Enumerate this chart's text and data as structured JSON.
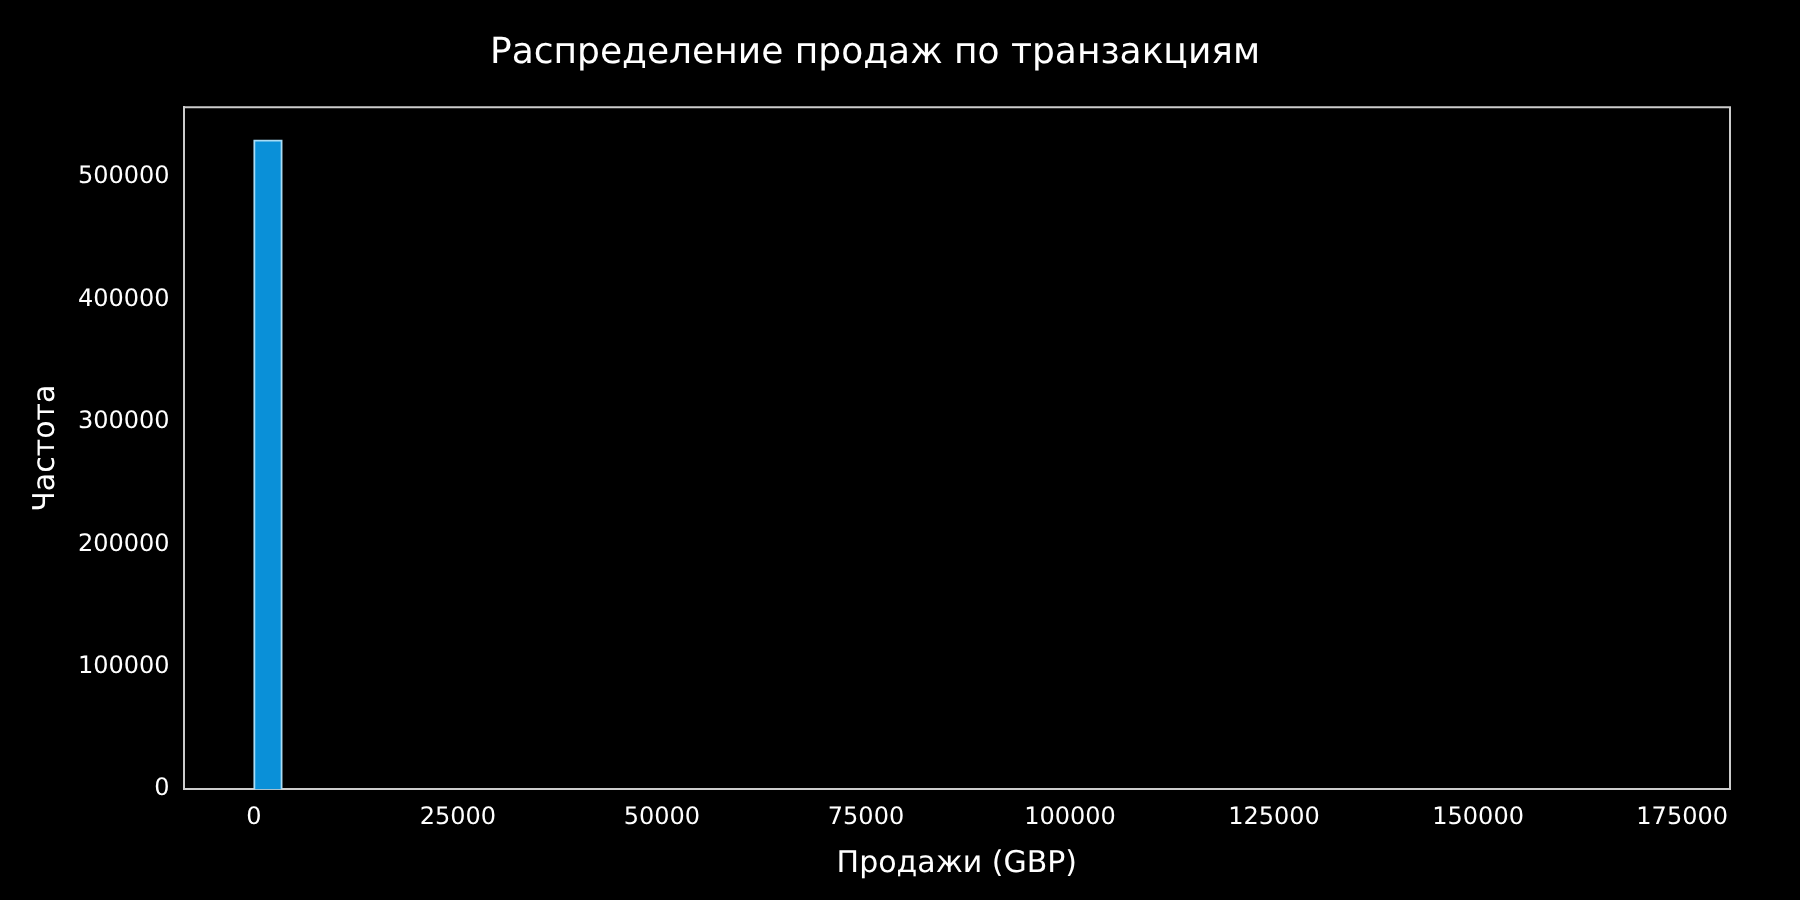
{
  "chart_data": {
    "type": "histogram",
    "title": "Распределение продаж по транзакциям",
    "xlabel": "Продажи (GBP)",
    "ylabel": "Частота",
    "bins": [
      0,
      3445,
      6890,
      10335,
      13780,
      17225,
      20670,
      24115,
      27560,
      31005,
      34450,
      37895,
      41340,
      44785,
      48230,
      51675,
      55120,
      58565,
      62010,
      65455,
      68900,
      72345,
      75790,
      79235,
      82680,
      86125,
      89570,
      93015,
      96460,
      99905,
      103350,
      106795,
      110240,
      113685,
      117130,
      120575,
      124020,
      127465,
      130910,
      134355,
      137800,
      141245,
      144690,
      148135,
      151580,
      155025,
      158470,
      161915,
      165360,
      168805,
      172250
    ],
    "values": [
      530000,
      0,
      0,
      0,
      0,
      0,
      0,
      0,
      0,
      0,
      0,
      0,
      0,
      0,
      0,
      0,
      0,
      0,
      0,
      0,
      0,
      0,
      0,
      0,
      0,
      0,
      0,
      0,
      0,
      0,
      0,
      0,
      0,
      0,
      0,
      0,
      0,
      0,
      0,
      0,
      0,
      0,
      0,
      0,
      0,
      0,
      0,
      0,
      0,
      0
    ],
    "color": "#0a90d8",
    "xlim": [
      -8613,
      180863
    ],
    "xticks": [
      0,
      25000,
      50000,
      75000,
      100000,
      125000,
      150000,
      175000
    ],
    "ylim": [
      0,
      557000
    ],
    "yticks": [
      0,
      100000,
      200000,
      300000,
      400000,
      500000
    ],
    "grid": false,
    "legend": false
  }
}
